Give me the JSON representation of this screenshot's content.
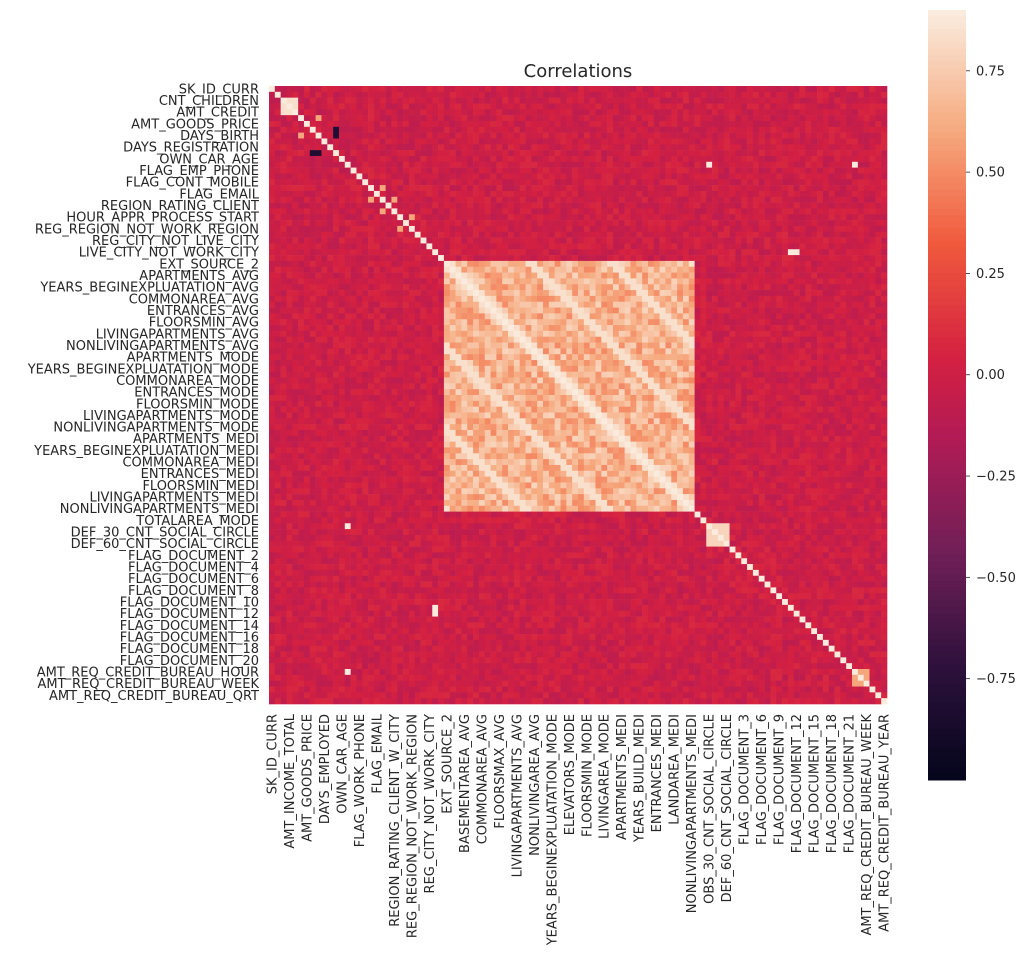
{
  "chart_data": {
    "type": "heatmap",
    "title": "Correlations",
    "n_variables": 106,
    "y_tick_labels": [
      "SK_ID_CURR",
      "CNT_CHILDREN",
      "AMT_CREDIT",
      "AMT_GOODS_PRICE",
      "DAYS_BIRTH",
      "DAYS_REGISTRATION",
      "OWN_CAR_AGE",
      "FLAG_EMP_PHONE",
      "FLAG_CONT_MOBILE",
      "FLAG_EMAIL",
      "REGION_RATING_CLIENT",
      "HOUR_APPR_PROCESS_START",
      "REG_REGION_NOT_WORK_REGION",
      "REG_CITY_NOT_LIVE_CITY",
      "LIVE_CITY_NOT_WORK_CITY",
      "EXT_SOURCE_2",
      "APARTMENTS_AVG",
      "YEARS_BEGINEXPLUATATION_AVG",
      "COMMONAREA_AVG",
      "ENTRANCES_AVG",
      "FLOORSMIN_AVG",
      "LIVINGAPARTMENTS_AVG",
      "NONLIVINGAPARTMENTS_AVG",
      "APARTMENTS_MODE",
      "YEARS_BEGINEXPLUATATION_MODE",
      "COMMONAREA_MODE",
      "ENTRANCES_MODE",
      "FLOORSMIN_MODE",
      "LIVINGAPARTMENTS_MODE",
      "NONLIVINGAPARTMENTS_MODE",
      "APARTMENTS_MEDI",
      "YEARS_BEGINEXPLUATATION_MEDI",
      "COMMONAREA_MEDI",
      "ENTRANCES_MEDI",
      "FLOORSMIN_MEDI",
      "LIVINGAPARTMENTS_MEDI",
      "NONLIVINGAPARTMENTS_MEDI",
      "TOTALAREA_MODE",
      "DEF_30_CNT_SOCIAL_CIRCLE",
      "DEF_60_CNT_SOCIAL_CIRCLE",
      "FLAG_DOCUMENT_2",
      "FLAG_DOCUMENT_4",
      "FLAG_DOCUMENT_6",
      "FLAG_DOCUMENT_8",
      "FLAG_DOCUMENT_10",
      "FLAG_DOCUMENT_12",
      "FLAG_DOCUMENT_14",
      "FLAG_DOCUMENT_16",
      "FLAG_DOCUMENT_18",
      "FLAG_DOCUMENT_20",
      "AMT_REQ_CREDIT_BUREAU_HOUR",
      "AMT_REQ_CREDIT_BUREAU_WEEK",
      "AMT_REQ_CREDIT_BUREAU_QRT"
    ],
    "x_tick_labels": [
      "SK_ID_CURR",
      "AMT_INCOME_TOTAL",
      "AMT_GOODS_PRICE",
      "DAYS_EMPLOYED",
      "OWN_CAR_AGE",
      "FLAG_WORK_PHONE",
      "FLAG_EMAIL",
      "REGION_RATING_CLIENT_W_CITY",
      "REG_REGION_NOT_WORK_REGION",
      "REG_CITY_NOT_WORK_CITY",
      "EXT_SOURCE_2",
      "BASEMENTAREA_AVG",
      "COMMONAREA_AVG",
      "FLOORSMAX_AVG",
      "LIVINGAPARTMENTS_AVG",
      "NONLIVINGAREA_AVG",
      "YEARS_BEGINEXPLUATATION_MODE",
      "ELEVATORS_MODE",
      "FLOORSMIN_MODE",
      "LIVINGAREA_MODE",
      "APARTMENTS_MEDI",
      "YEARS_BUILD_MEDI",
      "ENTRANCES_MEDI",
      "LANDAREA_MEDI",
      "NONLIVINGAPARTMENTS_MEDI",
      "OBS_30_CNT_SOCIAL_CIRCLE",
      "DEF_60_CNT_SOCIAL_CIRCLE",
      "FLAG_DOCUMENT_3",
      "FLAG_DOCUMENT_6",
      "FLAG_DOCUMENT_9",
      "FLAG_DOCUMENT_12",
      "FLAG_DOCUMENT_15",
      "FLAG_DOCUMENT_18",
      "FLAG_DOCUMENT_21",
      "AMT_REQ_CREDIT_BUREAU_WEEK",
      "AMT_REQ_CREDIT_BUREAU_YEAR"
    ],
    "x_tick_positions": [
      0,
      3,
      6,
      9,
      12,
      15,
      18,
      21,
      24,
      27,
      30,
      33,
      36,
      39,
      42,
      45,
      48,
      51,
      54,
      57,
      60,
      63,
      66,
      69,
      72,
      75,
      78,
      81,
      84,
      87,
      90,
      93,
      96,
      99,
      102,
      105
    ],
    "y_tick_positions": [
      0,
      2,
      4,
      6,
      8,
      10,
      12,
      14,
      16,
      18,
      20,
      22,
      24,
      26,
      28,
      30,
      32,
      34,
      36,
      38,
      40,
      42,
      44,
      46,
      48,
      50,
      52,
      54,
      56,
      58,
      60,
      62,
      64,
      66,
      68,
      70,
      72,
      74,
      76,
      78,
      80,
      82,
      84,
      86,
      88,
      90,
      92,
      94,
      96,
      98,
      100,
      102,
      104
    ],
    "correlation_blocks": [
      {
        "from": 2,
        "to": 4,
        "value": 0.85
      },
      {
        "from": 30,
        "to": 72,
        "value": 0.55
      },
      {
        "from": 75,
        "to": 78,
        "value": 0.8
      },
      {
        "from": 100,
        "to": 102,
        "value": 0.6
      }
    ],
    "colorbar": {
      "colormap": "rocket",
      "vmin": -1.0,
      "vmax": 0.9,
      "ticks": [
        -0.75,
        -0.5,
        -0.25,
        0.0,
        0.25,
        0.5,
        0.75
      ],
      "tick_labels": [
        "−0.75",
        "−0.50",
        "−0.25",
        "0.00",
        "0.25",
        "0.50",
        "0.75"
      ]
    }
  }
}
